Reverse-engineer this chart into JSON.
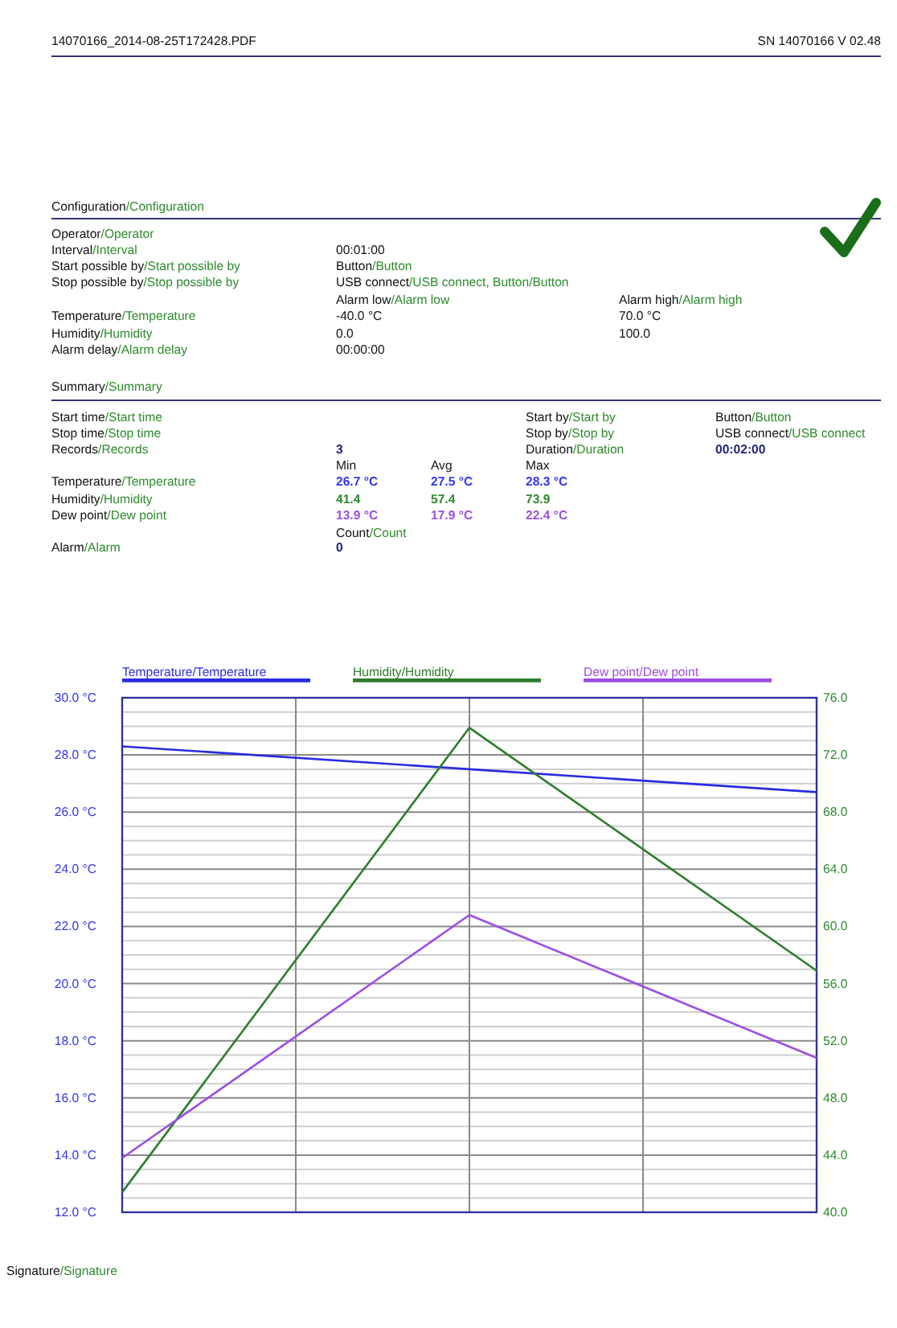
{
  "chart_data": {
    "type": "line",
    "categories": [
      null,
      null,
      null
    ],
    "ylim": [
      12,
      30
    ],
    "yticks": [
      {
        "value": 12,
        "label": "12.0 °C"
      },
      {
        "value": 12.5,
        "label": null
      },
      {
        "value": 13,
        "label": null
      },
      {
        "value": 13.5,
        "label": null
      },
      {
        "value": 14,
        "label": "14.0 °C"
      },
      {
        "value": 14.5,
        "label": null
      },
      {
        "value": 15,
        "label": null
      },
      {
        "value": 15.5,
        "label": null
      },
      {
        "value": 16,
        "label": "16.0 °C"
      },
      {
        "value": 16.5,
        "label": null
      },
      {
        "value": 17,
        "label": null
      },
      {
        "value": 17.5,
        "label": null
      },
      {
        "value": 18,
        "label": "18.0 °C"
      },
      {
        "value": 18.5,
        "label": null
      },
      {
        "value": 19,
        "label": null
      },
      {
        "value": 19.5,
        "label": null
      },
      {
        "value": 20,
        "label": "20.0 °C"
      },
      {
        "value": 20.5,
        "label": null
      },
      {
        "value": 21,
        "label": null
      },
      {
        "value": 21.5,
        "label": null
      },
      {
        "value": 22,
        "label": "22.0 °C"
      },
      {
        "value": 22.5,
        "label": null
      },
      {
        "value": 23,
        "label": null
      },
      {
        "value": 23.5,
        "label": null
      },
      {
        "value": 24,
        "label": "24.0 °C"
      },
      {
        "value": 24.5,
        "label": null
      },
      {
        "value": 25,
        "label": null
      },
      {
        "value": 25.5,
        "label": null
      },
      {
        "value": 26,
        "label": "26.0 °C"
      },
      {
        "value": 26.5,
        "label": null
      },
      {
        "value": 27,
        "label": null
      },
      {
        "value": 27.5,
        "label": null
      },
      {
        "value": 28,
        "label": "28.0 °C"
      },
      {
        "value": 28.5,
        "label": null
      },
      {
        "value": 29,
        "label": null
      },
      {
        "value": 29.5,
        "label": null
      },
      {
        "value": 30,
        "label": "30.0 °C"
      }
    ],
    "y2lim": [
      40,
      76
    ],
    "y2ticks": [
      {
        "value": 40,
        "label": "40.0"
      },
      {
        "value": 44,
        "label": "44.0"
      },
      {
        "value": 48,
        "label": "48.0"
      },
      {
        "value": 52,
        "label": "52.0"
      },
      {
        "value": 56,
        "label": "56.0"
      },
      {
        "value": 60,
        "label": "60.0"
      },
      {
        "value": 64,
        "label": "64.0"
      },
      {
        "value": 68,
        "label": "68.0"
      },
      {
        "value": 72,
        "label": "72.0"
      },
      {
        "value": 76,
        "label": "76.0"
      }
    ],
    "grid": true,
    "legend": "top",
    "series": [
      {
        "name": "Temperature/Temperature",
        "color": "#2b2bdf",
        "values": [
          28.3,
          27.5,
          26.7
        ]
      },
      {
        "name": "Humidity/Humidity",
        "color": "#2e7d2e",
        "values": [
          41.4,
          73.9,
          56.9
        ],
        "axis": "y2"
      },
      {
        "name": "Dew point/Dew point",
        "color": "#9b4fe0",
        "values": [
          13.9,
          22.4,
          17.4
        ]
      }
    ],
    "annotations": [
      "14070166_2014-08-25T172428.PDF",
      "SN 14070166  V 02.48",
      "Configuration/Configuration",
      "Operator/Operator",
      "Interval/Interval",
      "00:01:00",
      "Start possible by/Start possible by",
      "Button/Button",
      "Stop possible by/Stop possible by",
      "USB connect/USB connect,  Button/Button",
      "Alarm low/Alarm low",
      "Alarm high/Alarm high",
      "Temperature/Temperature",
      "-40.0 °C",
      "70.0 °C",
      "Humidity/Humidity",
      "0.0",
      "100.0",
      "Alarm delay/Alarm delay",
      "00:00:00",
      "Summary/Summary",
      "Start time/Start time",
      "Start by/Start by",
      "Button/Button",
      "Stop time/Stop time",
      "Stop by/Stop by",
      "USB connect/USB connect",
      "Records/Records",
      "3",
      "Duration/Duration",
      "00:02:00",
      "Min",
      "Avg",
      "Max",
      "Temperature/Temperature",
      "26.7 °C",
      "27.5 °C",
      "28.3 °C",
      "Humidity/Humidity",
      "41.4",
      "57.4",
      "73.9",
      "Dew point/Dew point",
      "13.9 °C",
      "17.9 °C",
      "22.4 °C",
      "Count/Count",
      "Alarm/Alarm",
      "0",
      "Signature/Signature"
    ]
  }
}
